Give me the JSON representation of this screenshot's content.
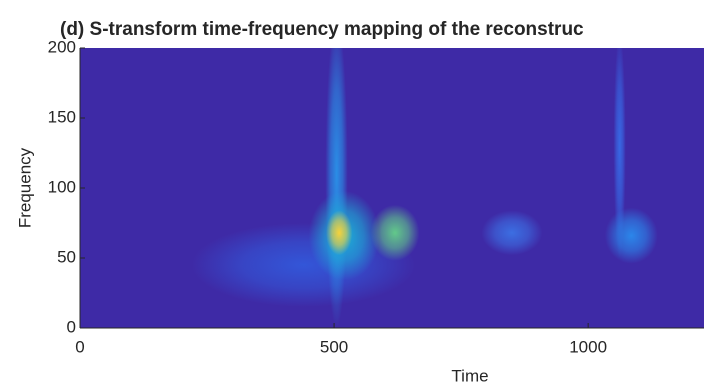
{
  "chart_data": {
    "type": "heatmap",
    "title": "(d) S-transform time-frequency mapping of the reconstruc",
    "xlabel": "Time",
    "ylabel": "Frequency",
    "background": "#3e2aa6",
    "xlim": [
      0,
      1228
    ],
    "ylim": [
      0,
      200
    ],
    "xticks": [
      0,
      500,
      1000
    ],
    "yticks": [
      0,
      50,
      100,
      150,
      200
    ],
    "hotspots": [
      {
        "x": 440,
        "y": 45,
        "dx": 220,
        "dy": 30,
        "color": "#3356d8"
      },
      {
        "x": 505,
        "y": 110,
        "dx": 22,
        "dy": 110,
        "color": "#2a8ee6"
      },
      {
        "x": 1062,
        "y": 130,
        "dx": 12,
        "dy": 80,
        "color": "#3868e4"
      },
      {
        "x": 520,
        "y": 66,
        "dx": 70,
        "dy": 32,
        "color": "#1cb0d8"
      },
      {
        "x": 620,
        "y": 68,
        "dx": 48,
        "dy": 20,
        "color": "#62c98a"
      },
      {
        "x": 850,
        "y": 68,
        "dx": 60,
        "dy": 16,
        "color": "#3c6ee2"
      },
      {
        "x": 1085,
        "y": 66,
        "dx": 52,
        "dy": 20,
        "color": "#2b86ea"
      },
      {
        "x": 510,
        "y": 68,
        "dx": 26,
        "dy": 16,
        "color": "#f7d23a"
      }
    ]
  }
}
